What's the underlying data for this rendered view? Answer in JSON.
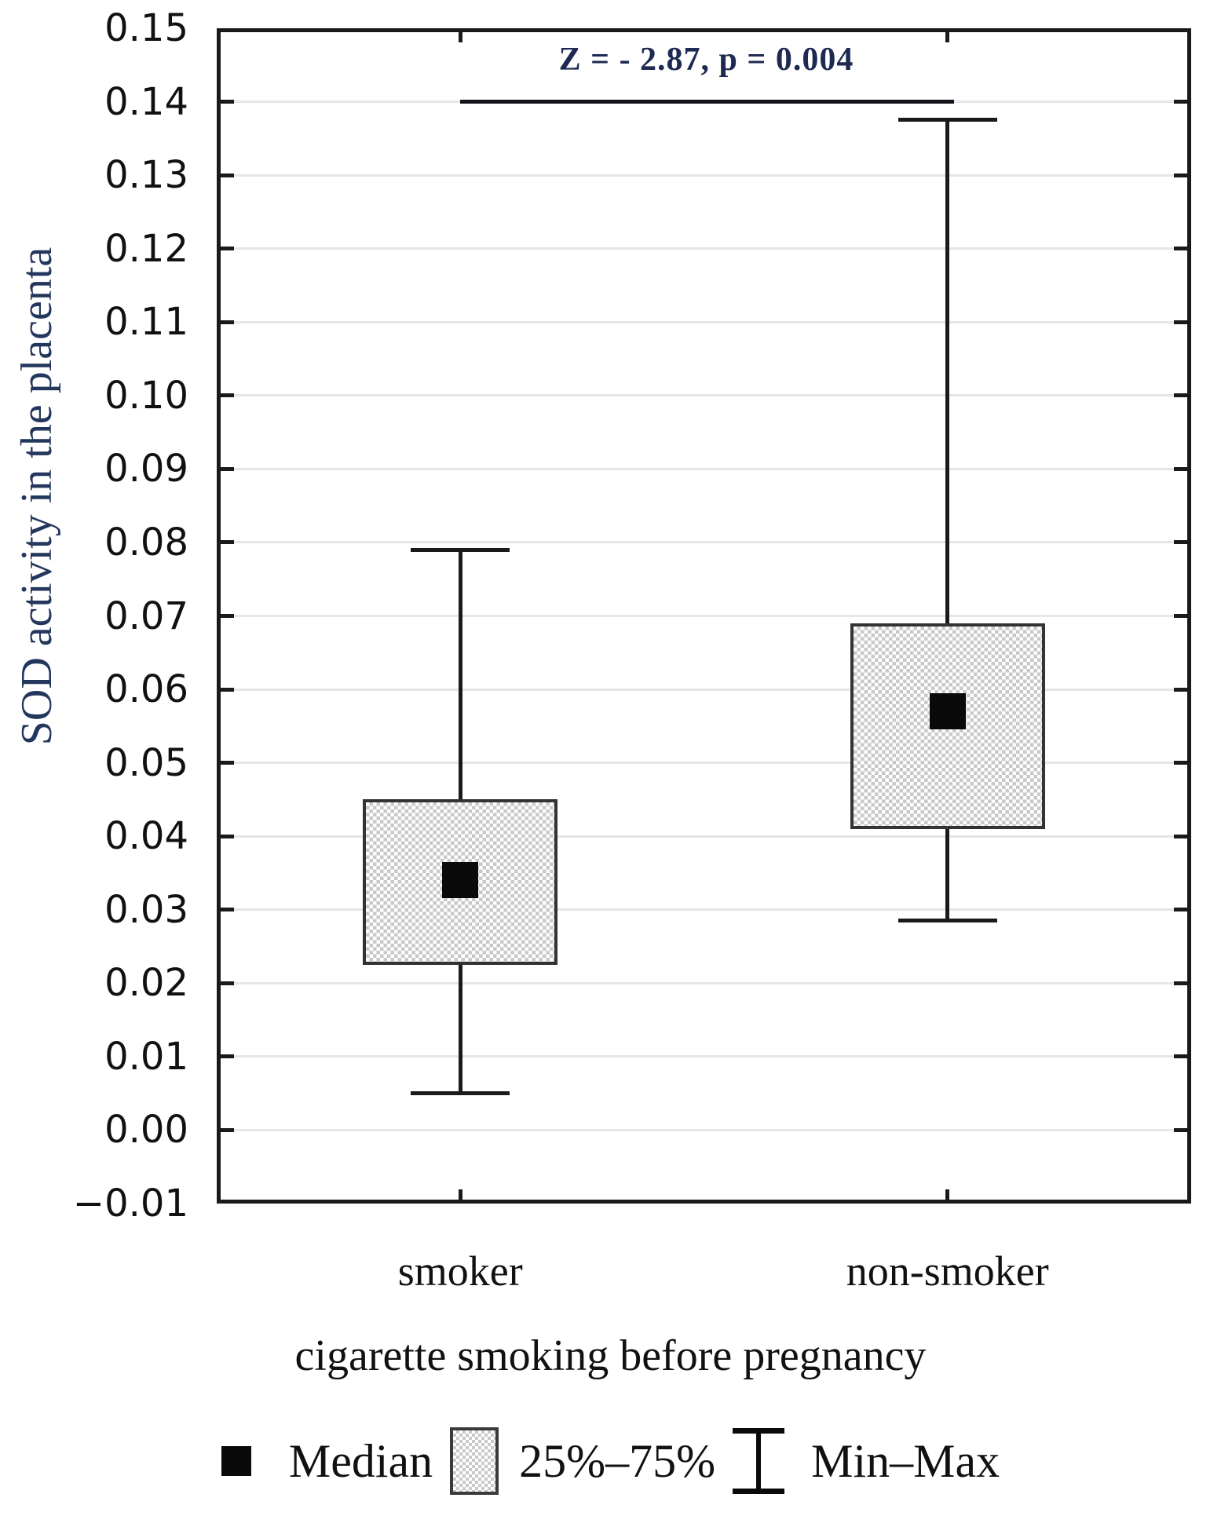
{
  "chart_data": {
    "type": "boxplot",
    "title": "",
    "categories": [
      "smoker",
      "non-smoker"
    ],
    "series": [
      {
        "name": "smoker",
        "min": 0.005,
        "q1": 0.0225,
        "median": 0.034,
        "q3": 0.045,
        "max": 0.079
      },
      {
        "name": "non-smoker",
        "min": 0.0285,
        "q1": 0.041,
        "median": 0.057,
        "q3": 0.069,
        "max": 0.1375
      }
    ],
    "ylim": [
      -0.01,
      0.15
    ],
    "ytick_step": 0.01,
    "yticks": [
      "0.15",
      "0.14",
      "0.13",
      "0.12",
      "0.11",
      "0.10",
      "0.09",
      "0.08",
      "0.07",
      "0.06",
      "0.05",
      "0.04",
      "0.03",
      "0.02",
      "0.01",
      "0.00",
      "−0.01"
    ],
    "ylabel": "SOD activity in the placenta",
    "xlabel": "cigarette smoking before pregnancy",
    "grid": true,
    "annotation": {
      "text": "Z = - 2.87, p = 0.004",
      "y": 0.14,
      "x_from": "smoker",
      "x_to": "non-smoker"
    },
    "legend_position": "bottom",
    "legend": [
      {
        "marker": "median-square",
        "label": "Median"
      },
      {
        "marker": "iqr-box",
        "label": "25%–75%"
      },
      {
        "marker": "min-max-whisker",
        "label": "Min–Max"
      }
    ],
    "colors": {
      "line": "#1a1a1a",
      "grid": "#e6e6e6",
      "box_border": "#333333",
      "box_hatch": "#c9c9c9",
      "median_marker": "#0a0a0a",
      "text": "#111111",
      "ylabel_text": "#23365c",
      "annotation_text": "#1e2a52"
    }
  }
}
